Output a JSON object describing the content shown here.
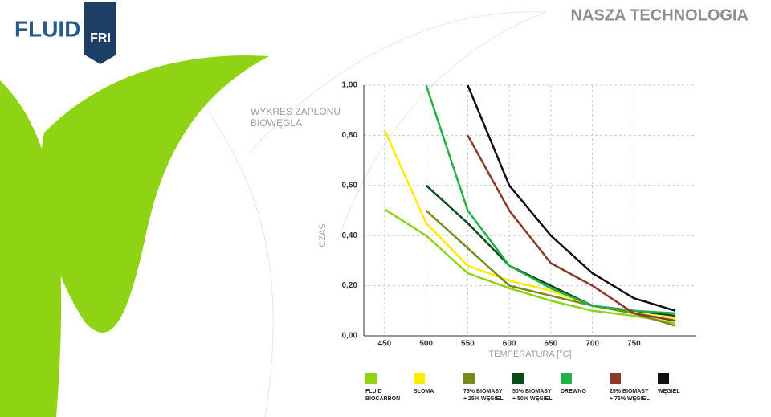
{
  "header": {
    "title": "NASZA TECHNOLOGIA",
    "logo_left": "FLUID",
    "logo_right": "FRI"
  },
  "chart_data": {
    "type": "line",
    "title": "WYKRES ZAPŁONU\nBIOWĘGLA",
    "x_label": "TEMPERATURA [°C]",
    "y_label": "CZAS",
    "x": [
      450,
      500,
      550,
      600,
      650,
      700,
      750,
      800
    ],
    "xlim": [
      425,
      825
    ],
    "xticks": [
      450,
      500,
      550,
      600,
      650,
      700,
      750
    ],
    "ylim": [
      0,
      1
    ],
    "yticks": [
      {
        "value": 0,
        "label": "0,00"
      },
      {
        "value": 0.2,
        "label": "0,20"
      },
      {
        "value": 0.4,
        "label": "0,40"
      },
      {
        "value": 0.6,
        "label": "0,60"
      },
      {
        "value": 0.8,
        "label": "0,80"
      },
      {
        "value": 1,
        "label": "1,00"
      }
    ],
    "grid": true,
    "series": [
      {
        "name": "FLUID\nBIOCARBON",
        "color": "#8ed414",
        "values": [
          0.505,
          0.4,
          0.25,
          0.19,
          0.14,
          0.1,
          0.08,
          0.05
        ]
      },
      {
        "name": "SŁOMA",
        "color": "#ffec00",
        "values": [
          0.82,
          0.45,
          0.28,
          0.22,
          0.18,
          0.12,
          0.09,
          0.07
        ]
      },
      {
        "name": "75% BIOMASY\n+ 25% WĘGIEL",
        "color": "#7a8a1f",
        "values": [
          null,
          0.5,
          0.35,
          0.2,
          0.16,
          0.12,
          0.09,
          0.04
        ]
      },
      {
        "name": "50% BIOMASY\n+ 50% WĘGIEL",
        "color": "#0d4a1a",
        "values": [
          null,
          0.6,
          0.45,
          0.28,
          0.2,
          0.12,
          0.1,
          0.08
        ]
      },
      {
        "name": "DREWNO",
        "color": "#22b04b",
        "values": [
          null,
          1.0,
          0.5,
          0.28,
          0.19,
          0.12,
          0.1,
          0.09
        ]
      },
      {
        "name": "25% BIOMASY\n+ 75% WĘGIEL",
        "color": "#8b3a2a",
        "values": [
          null,
          null,
          0.8,
          0.5,
          0.29,
          0.2,
          0.09,
          0.06
        ]
      },
      {
        "name": "WĘGIEL",
        "color": "#111111",
        "values": [
          null,
          null,
          1.0,
          0.6,
          0.4,
          0.25,
          0.15,
          0.1
        ]
      }
    ]
  }
}
